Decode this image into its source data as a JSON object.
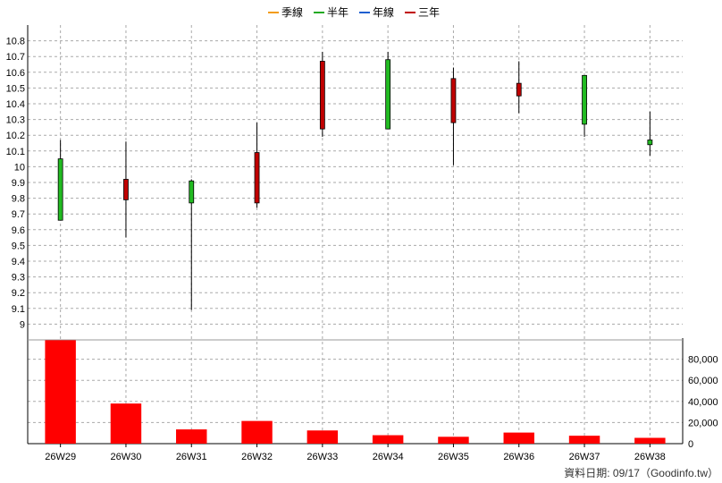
{
  "chart_data": {
    "type": "candlestick",
    "legend": [
      {
        "name": "季線",
        "color": "#f39c12"
      },
      {
        "name": "半年",
        "color": "#22aa22"
      },
      {
        "name": "年線",
        "color": "#1f5fd0"
      },
      {
        "name": "三年",
        "color": "#c00000"
      }
    ],
    "categories": [
      "26W29",
      "26W30",
      "26W31",
      "26W32",
      "26W33",
      "26W34",
      "26W35",
      "26W36",
      "26W37",
      "26W38"
    ],
    "ohlc": [
      {
        "o": 9.66,
        "h": 10.17,
        "l": 9.66,
        "c": 10.05
      },
      {
        "o": 9.92,
        "h": 10.16,
        "l": 9.55,
        "c": 9.79
      },
      {
        "o": 9.77,
        "h": 9.92,
        "l": 9.09,
        "c": 9.91
      },
      {
        "o": 10.09,
        "h": 10.28,
        "l": 9.74,
        "c": 9.77
      },
      {
        "o": 10.67,
        "h": 10.73,
        "l": 10.19,
        "c": 10.24
      },
      {
        "o": 10.24,
        "h": 10.73,
        "l": 10.24,
        "c": 10.68
      },
      {
        "o": 10.56,
        "h": 10.63,
        "l": 10.01,
        "c": 10.28
      },
      {
        "o": 10.53,
        "h": 10.67,
        "l": 10.34,
        "c": 10.45
      },
      {
        "o": 10.27,
        "h": 10.58,
        "l": 10.19,
        "c": 10.58
      },
      {
        "o": 10.14,
        "h": 10.35,
        "l": 10.07,
        "c": 10.17
      }
    ],
    "volume": [
      98000,
      38000,
      13500,
      21500,
      12500,
      8000,
      6500,
      10500,
      7500,
      5500
    ],
    "price_axis": {
      "min": 8.9,
      "max": 10.9,
      "ticks": [
        "9",
        "9.1",
        "9.2",
        "9.3",
        "9.4",
        "9.5",
        "9.6",
        "9.7",
        "9.8",
        "9.9",
        "10",
        "10.1",
        "10.2",
        "10.3",
        "10.4",
        "10.5",
        "10.6",
        "10.7",
        "10.8"
      ]
    },
    "volume_axis": {
      "min": 0,
      "max": 100000,
      "ticks": [
        0,
        20000,
        40000,
        60000,
        80000
      ],
      "tick_labels": [
        "0",
        "20,000",
        "40,000",
        "60,000",
        "80,000"
      ]
    },
    "grid": true,
    "colors": {
      "up": "#22bb22",
      "down": "#c00000",
      "volume": "#ff0000",
      "grid": "#aaaaaa"
    }
  },
  "footer": "資料日期: 09/17（Goodinfo.tw）"
}
